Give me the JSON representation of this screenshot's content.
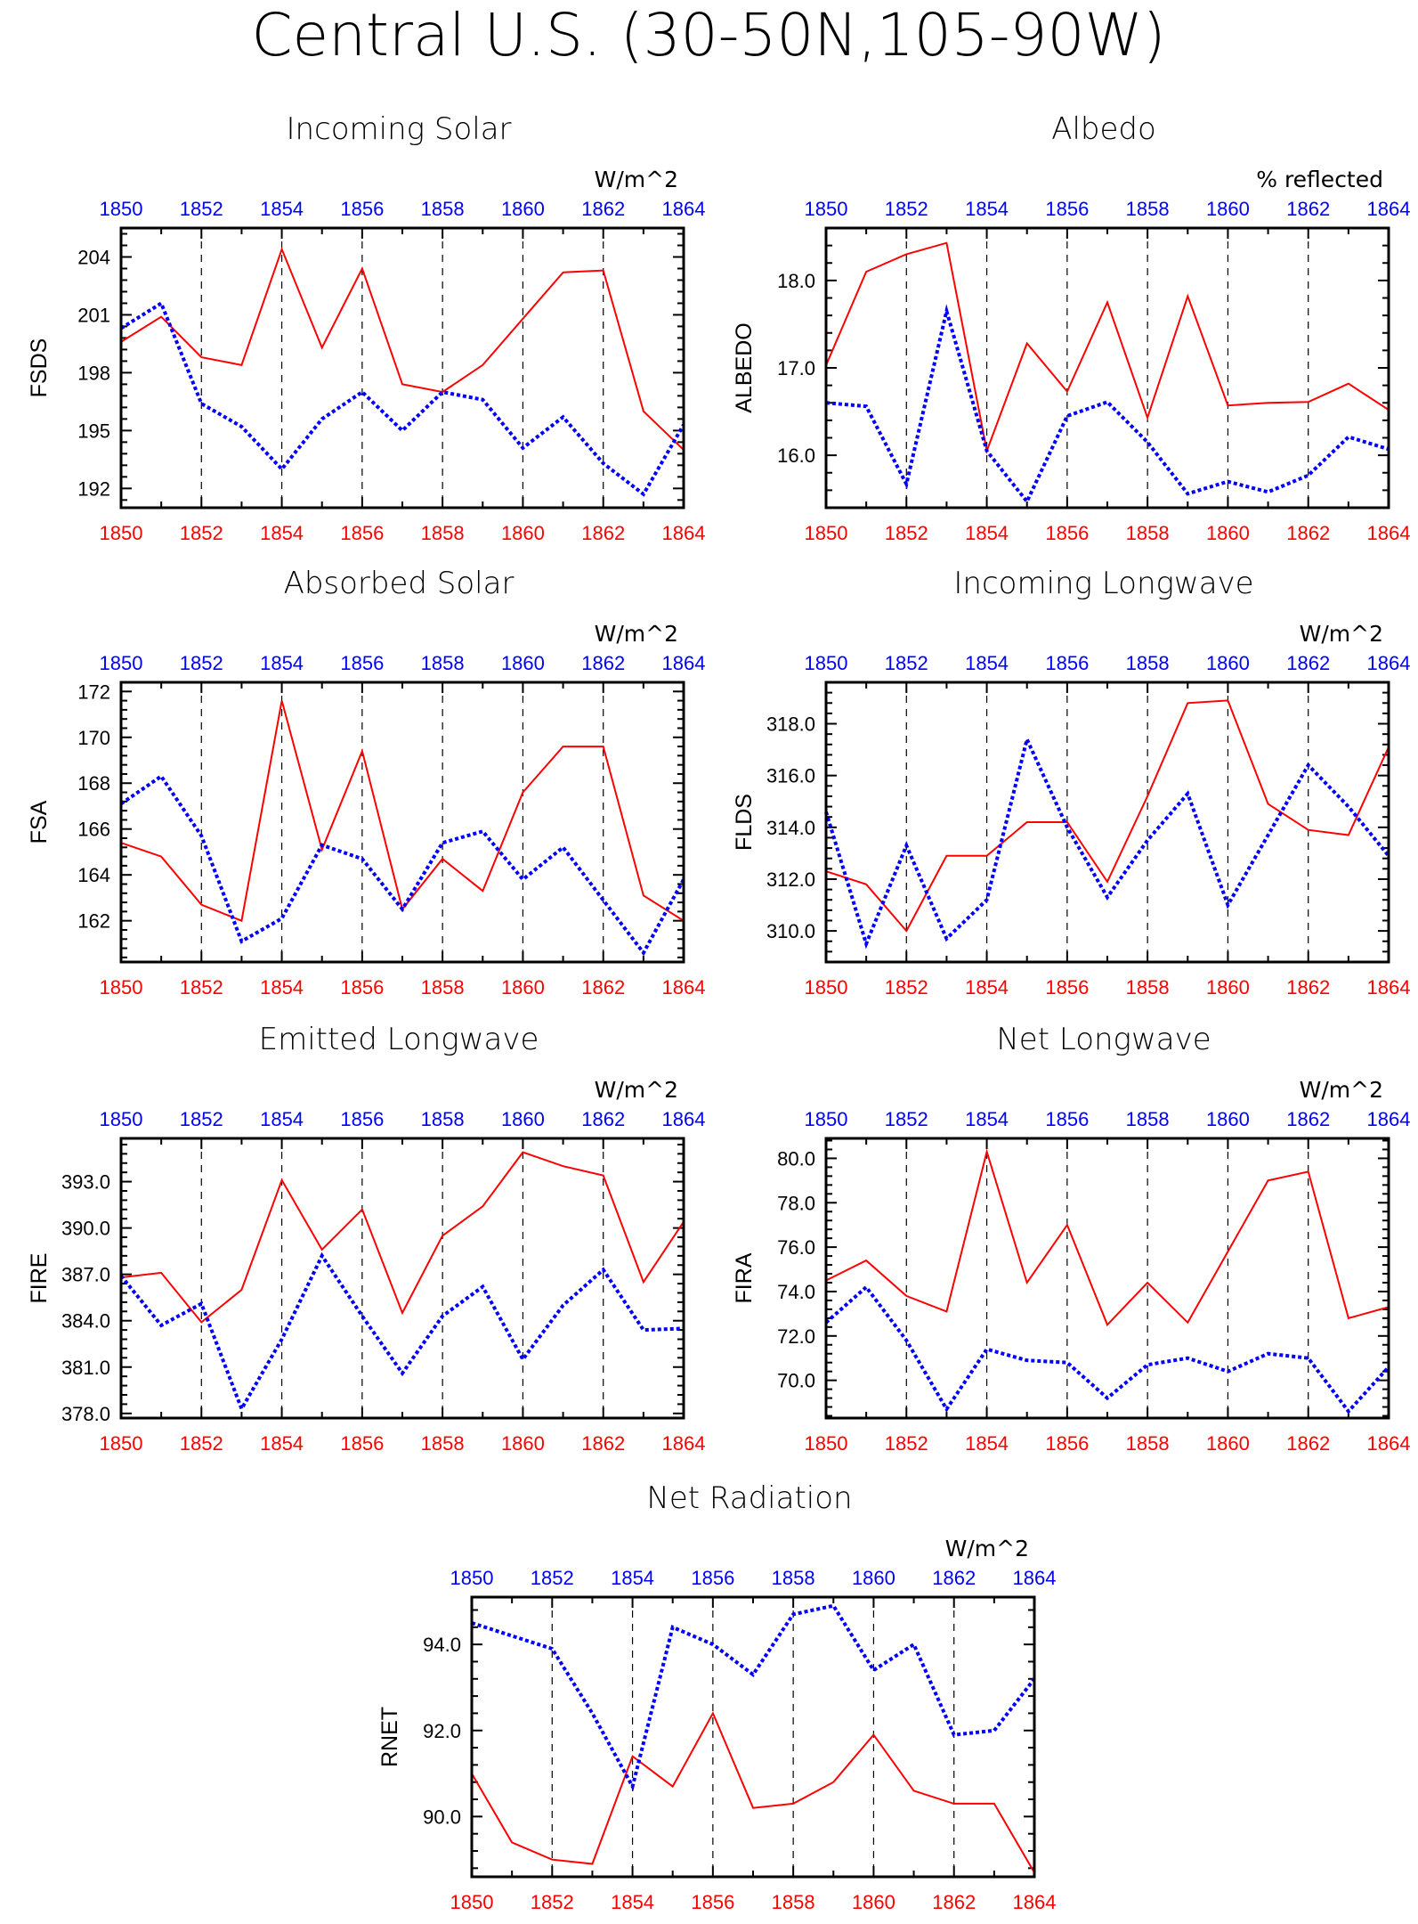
{
  "main_title": "Central U.S. (30-50N,105-90W)",
  "colors": {
    "series1": "#ff0000",
    "series2": "#0000ff",
    "axis": "#000000",
    "grid": "#000000"
  },
  "chart_data": [
    {
      "type": "line",
      "title": "Incoming Solar",
      "units": "W/m^2",
      "ylabel": "FSDS",
      "x": [
        1850,
        1851,
        1852,
        1853,
        1854,
        1855,
        1856,
        1857,
        1858,
        1859,
        1860,
        1861,
        1862,
        1863,
        1864
      ],
      "xlim": [
        1850,
        1864
      ],
      "xticks": [
        1850,
        1852,
        1854,
        1856,
        1858,
        1860,
        1862,
        1864
      ],
      "xtick_labels": [
        "1850",
        "1852",
        "1854",
        "1856",
        "1858",
        "1860",
        "1862",
        "1864"
      ],
      "ylim": [
        191,
        205.5
      ],
      "yticks": [
        192,
        195,
        198,
        201,
        204
      ],
      "ytick_labels": [
        "192",
        "195",
        "198",
        "201",
        "204"
      ],
      "grid": "vertical dashed at even years",
      "series": [
        {
          "color": "#ff0000",
          "style": "solid",
          "values": [
            199.6,
            200.9,
            198.8,
            198.4,
            204.4,
            199.3,
            203.4,
            197.4,
            197.0,
            198.4,
            200.8,
            203.2,
            203.3,
            196.0,
            194.0
          ]
        },
        {
          "color": "#0000ff",
          "style": "dotted",
          "values": [
            200.3,
            201.6,
            196.4,
            195.2,
            193.0,
            195.6,
            197.0,
            195.0,
            197.0,
            196.6,
            194.1,
            195.7,
            193.3,
            191.7,
            195.3
          ]
        }
      ]
    },
    {
      "type": "line",
      "title": "Albedo",
      "units": "% reflected",
      "ylabel": "ALBEDO",
      "x": [
        1850,
        1851,
        1852,
        1853,
        1854,
        1855,
        1856,
        1857,
        1858,
        1859,
        1860,
        1861,
        1862,
        1863,
        1864
      ],
      "xlim": [
        1850,
        1864
      ],
      "xticks": [
        1850,
        1852,
        1854,
        1856,
        1858,
        1860,
        1862,
        1864
      ],
      "xtick_labels": [
        "1850",
        "1852",
        "1854",
        "1856",
        "1858",
        "1860",
        "1862",
        "1864"
      ],
      "ylim": [
        15.4,
        18.6
      ],
      "yticks": [
        16.0,
        17.0,
        18.0
      ],
      "ytick_labels": [
        "16.0",
        "17.0",
        "18.0"
      ],
      "grid": "vertical dashed at even years",
      "series": [
        {
          "color": "#ff0000",
          "style": "solid",
          "values": [
            17.03,
            18.1,
            18.3,
            18.43,
            16.05,
            17.28,
            16.73,
            17.75,
            16.43,
            17.82,
            16.57,
            16.6,
            16.61,
            16.82,
            16.52
          ]
        },
        {
          "color": "#0000ff",
          "style": "dotted",
          "values": [
            16.6,
            16.56,
            15.67,
            17.65,
            16.05,
            15.47,
            16.45,
            16.61,
            16.15,
            15.56,
            15.7,
            15.58,
            15.77,
            16.21,
            16.07
          ]
        }
      ]
    },
    {
      "type": "line",
      "title": "Absorbed Solar",
      "units": "W/m^2",
      "ylabel": "FSA",
      "x": [
        1850,
        1851,
        1852,
        1853,
        1854,
        1855,
        1856,
        1857,
        1858,
        1859,
        1860,
        1861,
        1862,
        1863,
        1864
      ],
      "xlim": [
        1850,
        1864
      ],
      "xticks": [
        1850,
        1852,
        1854,
        1856,
        1858,
        1860,
        1862,
        1864
      ],
      "xtick_labels": [
        "1850",
        "1852",
        "1854",
        "1856",
        "1858",
        "1860",
        "1862",
        "1864"
      ],
      "ylim": [
        160.2,
        172.4
      ],
      "yticks": [
        162,
        164,
        166,
        168,
        170,
        172
      ],
      "ytick_labels": [
        "162",
        "164",
        "166",
        "168",
        "170",
        "172"
      ],
      "grid": "vertical dashed at even years",
      "series": [
        {
          "color": "#ff0000",
          "style": "solid",
          "values": [
            165.4,
            164.8,
            162.7,
            162.0,
            171.6,
            165.1,
            169.4,
            162.5,
            164.7,
            163.3,
            167.6,
            169.6,
            169.6,
            163.1,
            162.0
          ]
        },
        {
          "color": "#0000ff",
          "style": "dotted",
          "values": [
            167.1,
            168.3,
            165.7,
            161.1,
            162.1,
            165.3,
            164.7,
            162.5,
            165.4,
            165.9,
            163.8,
            165.2,
            162.9,
            160.6,
            163.8
          ]
        }
      ]
    },
    {
      "type": "line",
      "title": "Incoming Longwave",
      "units": "W/m^2",
      "ylabel": "FLDS",
      "x": [
        1850,
        1851,
        1852,
        1853,
        1854,
        1855,
        1856,
        1857,
        1858,
        1859,
        1860,
        1861,
        1862,
        1863,
        1864
      ],
      "xlim": [
        1850,
        1864
      ],
      "xticks": [
        1850,
        1852,
        1854,
        1856,
        1858,
        1860,
        1862,
        1864
      ],
      "xtick_labels": [
        "1850",
        "1852",
        "1854",
        "1856",
        "1858",
        "1860",
        "1862",
        "1864"
      ],
      "ylim": [
        308.8,
        319.6
      ],
      "yticks": [
        310.0,
        312.0,
        314.0,
        316.0,
        318.0
      ],
      "ytick_labels": [
        "310.0",
        "312.0",
        "314.0",
        "316.0",
        "318.0"
      ],
      "grid": "vertical dashed at even years",
      "series": [
        {
          "color": "#ff0000",
          "style": "solid",
          "values": [
            312.3,
            311.8,
            310.0,
            312.9,
            312.9,
            314.2,
            314.2,
            311.9,
            315.2,
            318.8,
            318.9,
            314.9,
            313.9,
            313.7,
            317.1
          ]
        },
        {
          "color": "#0000ff",
          "style": "dotted",
          "values": [
            314.6,
            309.5,
            313.3,
            309.7,
            311.2,
            317.4,
            314.0,
            311.3,
            313.5,
            315.3,
            311.0,
            313.7,
            316.4,
            314.8,
            312.9
          ]
        }
      ]
    },
    {
      "type": "line",
      "title": "Emitted Longwave",
      "units": "W/m^2",
      "ylabel": "FIRE",
      "x": [
        1850,
        1851,
        1852,
        1853,
        1854,
        1855,
        1856,
        1857,
        1858,
        1859,
        1860,
        1861,
        1862,
        1863,
        1864
      ],
      "xlim": [
        1850,
        1864
      ],
      "xticks": [
        1850,
        1852,
        1854,
        1856,
        1858,
        1860,
        1862,
        1864
      ],
      "xtick_labels": [
        "1850",
        "1852",
        "1854",
        "1856",
        "1858",
        "1860",
        "1862",
        "1864"
      ],
      "ylim": [
        377.7,
        395.8
      ],
      "yticks": [
        378.0,
        381.0,
        384.0,
        387.0,
        390.0,
        393.0
      ],
      "ytick_labels": [
        "378.0",
        "381.0",
        "384.0",
        "387.0",
        "390.0",
        "393.0"
      ],
      "grid": "vertical dashed at even years",
      "series": [
        {
          "color": "#ff0000",
          "style": "solid",
          "values": [
            386.8,
            387.1,
            383.9,
            386.0,
            393.1,
            388.6,
            391.2,
            384.5,
            389.5,
            391.4,
            394.9,
            394.0,
            393.4,
            386.5,
            390.4
          ]
        },
        {
          "color": "#0000ff",
          "style": "dotted",
          "values": [
            386.9,
            383.7,
            385.1,
            378.3,
            382.8,
            388.2,
            384.3,
            380.6,
            384.3,
            386.2,
            381.5,
            385.0,
            387.3,
            383.4,
            383.5
          ]
        }
      ]
    },
    {
      "type": "line",
      "title": "Net Longwave",
      "units": "W/m^2",
      "ylabel": "FIRA",
      "x": [
        1850,
        1851,
        1852,
        1853,
        1854,
        1855,
        1856,
        1857,
        1858,
        1859,
        1860,
        1861,
        1862,
        1863,
        1864
      ],
      "xlim": [
        1850,
        1864
      ],
      "xticks": [
        1850,
        1852,
        1854,
        1856,
        1858,
        1860,
        1862,
        1864
      ],
      "xtick_labels": [
        "1850",
        "1852",
        "1854",
        "1856",
        "1858",
        "1860",
        "1862",
        "1864"
      ],
      "ylim": [
        68.3,
        80.9
      ],
      "yticks": [
        70.0,
        72.0,
        74.0,
        76.0,
        78.0,
        80.0
      ],
      "ytick_labels": [
        "70.0",
        "72.0",
        "74.0",
        "76.0",
        "78.0",
        "80.0"
      ],
      "grid": "vertical dashed at even years",
      "series": [
        {
          "color": "#ff0000",
          "style": "solid",
          "values": [
            74.5,
            75.4,
            73.8,
            73.1,
            80.3,
            74.4,
            77.0,
            72.5,
            74.4,
            72.6,
            75.8,
            79.0,
            79.4,
            72.8,
            73.3
          ]
        },
        {
          "color": "#0000ff",
          "style": "dotted",
          "values": [
            72.6,
            74.2,
            71.8,
            68.7,
            71.4,
            70.9,
            70.8,
            69.2,
            70.7,
            71.0,
            70.4,
            71.2,
            71.0,
            68.6,
            70.6
          ]
        }
      ]
    },
    {
      "type": "line",
      "title": "Net Radiation",
      "units": "W/m^2",
      "ylabel": "RNET",
      "x": [
        1850,
        1851,
        1852,
        1853,
        1854,
        1855,
        1856,
        1857,
        1858,
        1859,
        1860,
        1861,
        1862,
        1863,
        1864
      ],
      "xlim": [
        1850,
        1864
      ],
      "xticks": [
        1850,
        1852,
        1854,
        1856,
        1858,
        1860,
        1862,
        1864
      ],
      "xtick_labels": [
        "1850",
        "1852",
        "1854",
        "1856",
        "1858",
        "1860",
        "1862",
        "1864"
      ],
      "ylim": [
        88.6,
        95.1
      ],
      "yticks": [
        90.0,
        92.0,
        94.0
      ],
      "ytick_labels": [
        "90.0",
        "92.0",
        "94.0"
      ],
      "grid": "vertical dashed at even years",
      "series": [
        {
          "color": "#ff0000",
          "style": "solid",
          "values": [
            91.0,
            89.4,
            89.0,
            88.9,
            91.4,
            90.7,
            92.4,
            90.2,
            90.3,
            90.8,
            91.9,
            90.6,
            90.3,
            90.3,
            88.7
          ]
        },
        {
          "color": "#0000ff",
          "style": "dotted",
          "values": [
            94.5,
            94.2,
            93.9,
            92.4,
            90.7,
            94.4,
            94.0,
            93.3,
            94.7,
            94.9,
            93.4,
            94.0,
            91.9,
            92.0,
            93.2
          ]
        }
      ]
    }
  ]
}
